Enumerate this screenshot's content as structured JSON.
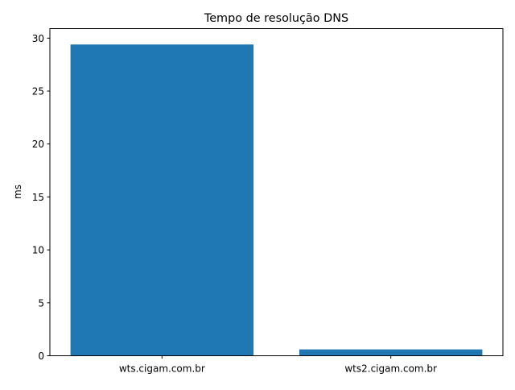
{
  "chart_data": {
    "type": "bar",
    "title": "Tempo de resolução DNS",
    "xlabel": "",
    "ylabel": "ms",
    "categories": [
      "wts.cigam.com.br",
      "wts2.cigam.com.br"
    ],
    "values": [
      29.4,
      0.6
    ],
    "ylim": [
      0,
      30.9
    ],
    "yticks": [
      0,
      5,
      10,
      15,
      20,
      25,
      30
    ],
    "grid": false,
    "bar_color": "#1f77b4"
  }
}
